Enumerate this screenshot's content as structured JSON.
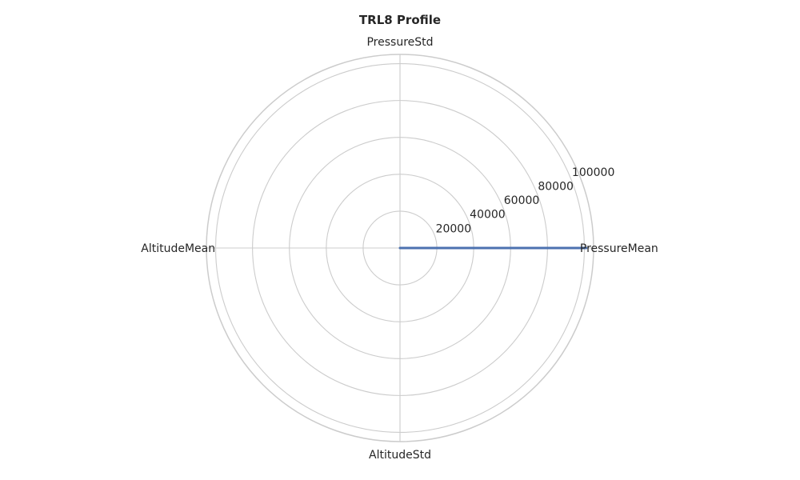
{
  "chart_data": {
    "type": "radar",
    "title": "TRL8 Profile",
    "axes": [
      "PressureMean",
      "PressureStd",
      "AltitudeMean",
      "AltitudeStd"
    ],
    "radial_ticks": [
      "20000",
      "40000",
      "60000",
      "80000",
      "100000"
    ],
    "rlim": [
      0,
      105000
    ],
    "series": [
      {
        "values": [
          101000,
          0,
          0,
          0
        ],
        "color": "#4c72b0"
      }
    ],
    "grid": true,
    "colors": {
      "grid": "#cccccc",
      "series": "#4c72b0",
      "text": "#262626"
    }
  }
}
